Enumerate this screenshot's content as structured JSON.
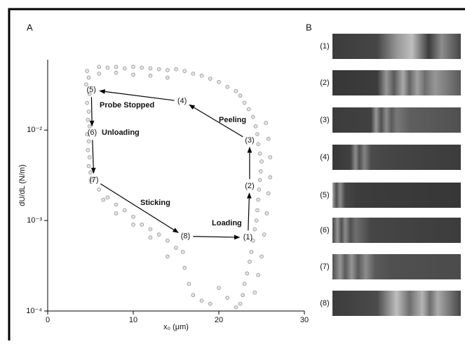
{
  "chart_data": {
    "type": "scatter",
    "panel_label": "A",
    "xlabel": "x₀ (μm)",
    "ylabel": "dU/dL (N/m)",
    "log_y": true,
    "xlim": [
      0,
      30
    ],
    "xticks": [
      0,
      10,
      20,
      30
    ],
    "ylim": [
      0.0001,
      0.06
    ],
    "yticks": [
      {
        "value": 0.0001,
        "label": "10⁻⁴"
      },
      {
        "value": 0.001,
        "label": "10⁻³"
      },
      {
        "value": 0.01,
        "label": "10⁻²"
      }
    ],
    "color": "#999999",
    "x": [
      4.6,
      4.8,
      4.5,
      4.9,
      4.6,
      4.8,
      4.7,
      4.9,
      4.6,
      4.8,
      4.7,
      4.9,
      4.8,
      5.0,
      5.2,
      6,
      7,
      8,
      9,
      10,
      11,
      12,
      13,
      14,
      15,
      16,
      17,
      18,
      19,
      20,
      21,
      22,
      6,
      8,
      10,
      12,
      14,
      22.5,
      23,
      23.5,
      24,
      24.3,
      24.5,
      24.6,
      24.8,
      25,
      24.9,
      24.8,
      24.7,
      24.6,
      24.5,
      24.4,
      24.2,
      24,
      23.8,
      23.6,
      23.3,
      23,
      22.8,
      22.5,
      25.5,
      25.8,
      26,
      26,
      25.8,
      25.6,
      25.3,
      25,
      24.6,
      24.2,
      6,
      7,
      8,
      9,
      10,
      11,
      12,
      13,
      14,
      15,
      6.5,
      8,
      10,
      12,
      14,
      16,
      16.5,
      17,
      18,
      19,
      20,
      21,
      22,
      15.8
    ],
    "values": [
      0.045,
      0.038,
      0.032,
      0.025,
      0.02,
      0.016,
      0.013,
      0.011,
      0.009,
      0.0075,
      0.006,
      0.005,
      0.004,
      0.0034,
      0.0028,
      0.05,
      0.049,
      0.05,
      0.048,
      0.05,
      0.049,
      0.048,
      0.047,
      0.046,
      0.047,
      0.045,
      0.042,
      0.04,
      0.037,
      0.034,
      0.03,
      0.027,
      0.042,
      0.043,
      0.041,
      0.04,
      0.038,
      0.024,
      0.02,
      0.017,
      0.014,
      0.011,
      0.009,
      0.007,
      0.0055,
      0.0045,
      0.0035,
      0.0028,
      0.0022,
      0.0017,
      0.0013,
      0.001,
      0.0008,
      0.0006,
      0.00045,
      0.00035,
      0.00026,
      0.0002,
      0.00015,
      0.00012,
      0.012,
      0.008,
      0.005,
      0.003,
      0.002,
      0.0012,
      0.0007,
      0.0004,
      0.00025,
      0.00016,
      0.0022,
      0.0018,
      0.0015,
      0.0013,
      0.0011,
      0.0009,
      0.0008,
      0.0007,
      0.0006,
      0.0005,
      0.0017,
      0.0012,
      0.0009,
      0.00065,
      0.0004,
      0.0003,
      0.0002,
      0.00015,
      0.00013,
      0.00012,
      0.00018,
      0.00014,
      0.00011,
      0.00045
    ],
    "keypoints": [
      {
        "label": "(1)",
        "x": 23.4,
        "y": 0.00065
      },
      {
        "label": "(2)",
        "x": 23.6,
        "y": 0.0024
      },
      {
        "label": "(3)",
        "x": 23.6,
        "y": 0.0077
      },
      {
        "label": "(4)",
        "x": 15.7,
        "y": 0.0208
      },
      {
        "label": "(5)",
        "x": 5.1,
        "y": 0.0277
      },
      {
        "label": "(6)",
        "x": 5.2,
        "y": 0.0093
      },
      {
        "label": "(7)",
        "x": 5.4,
        "y": 0.0028
      },
      {
        "label": "(8)",
        "x": 16.1,
        "y": 0.00067
      }
    ],
    "phases": [
      "Loading",
      "Peeling",
      "Probe Stopped",
      "Unloading",
      "Sticking"
    ]
  },
  "panel_b": {
    "panel_label": "B",
    "labels": [
      "(1)",
      "(2)",
      "(3)",
      "(4)",
      "(5)",
      "(6)",
      "(7)",
      "(8)"
    ]
  }
}
